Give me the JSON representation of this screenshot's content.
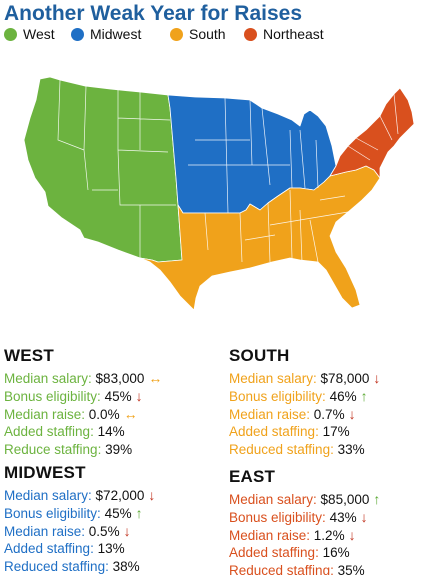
{
  "title": "Another Weak Year for Raises",
  "colors": {
    "West": "#6cb33f",
    "Midwest": "#1f6fc5",
    "South": "#f0a21b",
    "Northeast": "#d9501e",
    "arrow_up": "#5aa832",
    "arrow_down": "#c0311d",
    "arrow_flat": "#f0a21b"
  },
  "legend": [
    {
      "label": "West",
      "color": "#6cb33f"
    },
    {
      "label": "Midwest",
      "color": "#1f6fc5"
    },
    {
      "label": "South",
      "color": "#f0a21b"
    },
    {
      "label": "Northeast",
      "color": "#d9501e"
    }
  ],
  "panels": {
    "west": {
      "heading": "WEST",
      "color": "#6cb33f",
      "stats": [
        {
          "label": "Median salary:",
          "value": "$83,000",
          "trend": "flat"
        },
        {
          "label": "Bonus eligibility:",
          "value": "45%",
          "trend": "down"
        },
        {
          "label": "Median raise:",
          "value": "0.0%",
          "trend": "flat"
        },
        {
          "label": "Added staffing:",
          "value": "14%",
          "trend": ""
        },
        {
          "label": "Reduce staffing:",
          "value": "39%",
          "trend": ""
        }
      ]
    },
    "south": {
      "heading": "SOUTH",
      "color": "#f0a21b",
      "stats": [
        {
          "label": "Median salary:",
          "value": "$78,000",
          "trend": "down"
        },
        {
          "label": "Bonus eligibility:",
          "value": "46%",
          "trend": "up"
        },
        {
          "label": "Median raise:",
          "value": "0.7%",
          "trend": "down"
        },
        {
          "label": "Added staffing:",
          "value": "17%",
          "trend": ""
        },
        {
          "label": "Reduced staffing:",
          "value": "33%",
          "trend": ""
        }
      ]
    },
    "midwest": {
      "heading": "MIDWEST",
      "color": "#1f6fc5",
      "stats": [
        {
          "label": "Median salary:",
          "value": "$72,000",
          "trend": "down"
        },
        {
          "label": "Bonus eligibility:",
          "value": "45%",
          "trend": "up"
        },
        {
          "label": "Median raise:",
          "value": "0.5%",
          "trend": "down"
        },
        {
          "label": "Added staffing:",
          "value": "13%",
          "trend": ""
        },
        {
          "label": "Reduced staffing:",
          "value": "38%",
          "trend": ""
        }
      ]
    },
    "east": {
      "heading": "EAST",
      "color": "#d9501e",
      "stats": [
        {
          "label": "Median salary:",
          "value": "$85,000",
          "trend": "up"
        },
        {
          "label": "Bonus eligibility:",
          "value": "43%",
          "trend": "down"
        },
        {
          "label": "Median raise:",
          "value": "1.2%",
          "trend": "down"
        },
        {
          "label": "Added staffing:",
          "value": "16%",
          "trend": ""
        },
        {
          "label": "Reduced staffing:",
          "value": "35%",
          "trend": ""
        }
      ]
    }
  }
}
